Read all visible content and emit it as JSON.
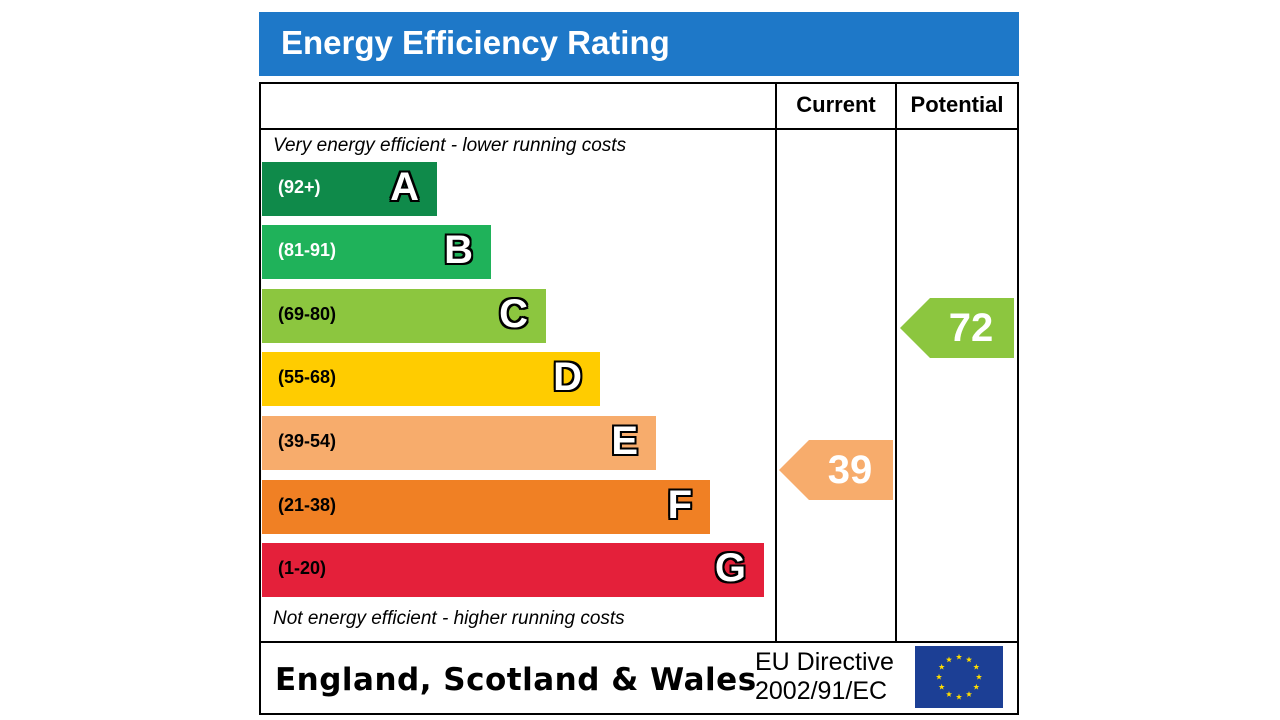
{
  "title": "Energy Efficiency Rating",
  "columns": {
    "current": "Current",
    "potential": "Potential"
  },
  "captions": {
    "top": "Very energy efficient - lower running costs",
    "bottom": "Not energy efficient - higher running costs"
  },
  "footer": {
    "region": "England, Scotland & Wales",
    "directive_line1": "EU Directive",
    "directive_line2": "2002/91/EC",
    "flag_icon": "eu-flag-icon"
  },
  "chart_data": {
    "type": "bar",
    "title": "Energy Efficiency Rating",
    "categories": [
      "A",
      "B",
      "C",
      "D",
      "E",
      "F",
      "G"
    ],
    "ranges": [
      "(92+)",
      "(81-91)",
      "(69-80)",
      "(55-68)",
      "(39-54)",
      "(21-38)",
      "(1-20)"
    ],
    "colors": [
      "#0f8a4a",
      "#1fb25a",
      "#8cc63f",
      "#ffcc00",
      "#f7ac6c",
      "#f08024",
      "#e4203a"
    ],
    "range_text_colors": [
      "#ffffff",
      "#ffffff",
      "#000000",
      "#000000",
      "#000000",
      "#000000",
      "#000000"
    ],
    "current": {
      "value": 39,
      "band": "E",
      "color": "#f7ac6c"
    },
    "potential": {
      "value": 72,
      "band": "C",
      "color": "#8cc63f"
    }
  }
}
